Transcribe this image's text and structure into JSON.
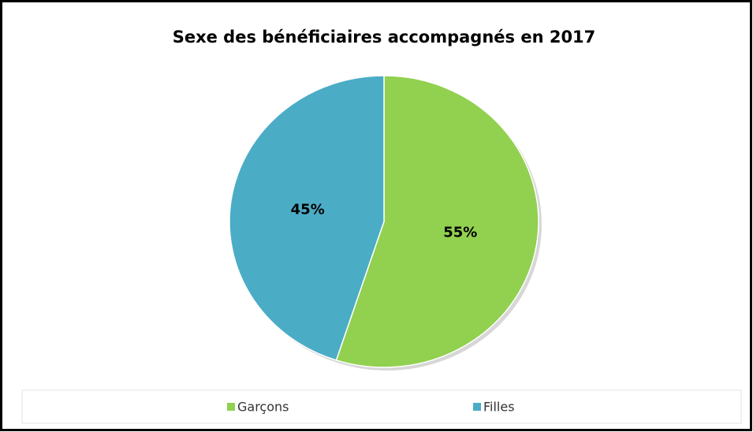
{
  "chart_data": {
    "type": "pie",
    "title": "Sexe des bénéficiaires accompagnés  en 2017",
    "categories": [
      "Garçons",
      "Filles"
    ],
    "values": [
      55,
      45
    ],
    "value_labels": [
      "55%",
      "45%"
    ],
    "colors": [
      "#92d050",
      "#4bacc6"
    ],
    "legend": "bottom"
  }
}
